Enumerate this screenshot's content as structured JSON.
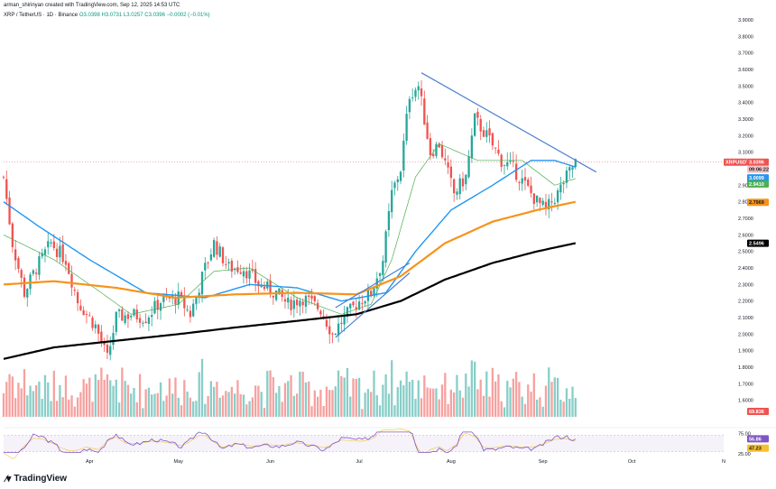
{
  "header": {
    "meta": "arman_shirinyan created with TradingView.com, Sep 12, 2025 14:53 UTC",
    "symbol": "XRP / TetherUS · 1D · Binance",
    "o": "O3.0398",
    "h": "H3.0731",
    "l": "L3.0257",
    "c": "C3.0396",
    "chg": "−0.0002 (−0.01%)"
  },
  "brand": {
    "text": "TradingView"
  },
  "colors": {
    "up": "#26a69a",
    "down": "#ef5350",
    "ma_fast": "#4caf50",
    "ma_mid": "#2196f3",
    "ma_slow": "#f7931a",
    "ma_long": "#000000",
    "trendline": "#4c7fd0",
    "rsi": "#7e57c2"
  },
  "tags": {
    "symbol": "XRPUSDT",
    "price": "3.0396",
    "countdown": "09:06:22",
    "ma_mid": "3.0099",
    "ma_fast": "2.9410",
    "ma_slow": "2.7969",
    "ma_long": "2.5496",
    "volume": "69.836",
    "rsi": "56.86",
    "rsi_ma": "47.23"
  },
  "chart_data": {
    "type": "candlestick",
    "title": "",
    "xlabel": "",
    "ylabel": "",
    "ylim": [
      1.5,
      3.9
    ],
    "y_ticks": [
      "3.9000",
      "3.8000",
      "3.7000",
      "3.6000",
      "3.5000",
      "3.4000",
      "3.3000",
      "3.2000",
      "3.1000",
      "2.9000",
      "2.8000",
      "2.7000",
      "2.6000",
      "2.5000",
      "2.4000",
      "2.3000",
      "2.2000",
      "2.1000",
      "2.0000",
      "1.9000",
      "1.8000",
      "1.7000",
      "1.6000"
    ],
    "x_ticks": [
      {
        "label": "Apr",
        "x": "2025-04-01"
      },
      {
        "label": "May",
        "x": "2025-05-01"
      },
      {
        "label": "Jun",
        "x": "2025-06-01"
      },
      {
        "label": "Jul",
        "x": "2025-07-01"
      },
      {
        "label": "Aug",
        "x": "2025-08-01"
      },
      {
        "label": "Sep",
        "x": "2025-09-01"
      },
      {
        "label": "Oct",
        "x": "2025-10-01"
      },
      {
        "label": "N",
        "x": "2025-11-01"
      }
    ],
    "xlim": [
      "2025-03-03",
      "2025-11-01"
    ],
    "close_anchors": [
      [
        "2025-03-03",
        2.95
      ],
      [
        "2025-03-06",
        2.55
      ],
      [
        "2025-03-10",
        2.25
      ],
      [
        "2025-03-14",
        2.4
      ],
      [
        "2025-03-19",
        2.55
      ],
      [
        "2025-03-24",
        2.45
      ],
      [
        "2025-03-28",
        2.2
      ],
      [
        "2025-04-03",
        2.05
      ],
      [
        "2025-04-07",
        1.85
      ],
      [
        "2025-04-10",
        2.1
      ],
      [
        "2025-04-15",
        2.12
      ],
      [
        "2025-04-20",
        2.1
      ],
      [
        "2025-04-25",
        2.2
      ],
      [
        "2025-05-01",
        2.22
      ],
      [
        "2025-05-05",
        2.12
      ],
      [
        "2025-05-10",
        2.4
      ],
      [
        "2025-05-13",
        2.55
      ],
      [
        "2025-05-18",
        2.4
      ],
      [
        "2025-05-23",
        2.4
      ],
      [
        "2025-05-28",
        2.3
      ],
      [
        "2025-06-03",
        2.25
      ],
      [
        "2025-06-07",
        2.18
      ],
      [
        "2025-06-12",
        2.22
      ],
      [
        "2025-06-18",
        2.15
      ],
      [
        "2025-06-22",
        2.0
      ],
      [
        "2025-06-26",
        2.1
      ],
      [
        "2025-07-01",
        2.2
      ],
      [
        "2025-07-05",
        2.25
      ],
      [
        "2025-07-09",
        2.45
      ],
      [
        "2025-07-12",
        2.85
      ],
      [
        "2025-07-15",
        3.0
      ],
      [
        "2025-07-18",
        3.45
      ],
      [
        "2025-07-21",
        3.5
      ],
      [
        "2025-07-25",
        3.1
      ],
      [
        "2025-07-28",
        3.15
      ],
      [
        "2025-08-02",
        2.85
      ],
      [
        "2025-08-06",
        2.95
      ],
      [
        "2025-08-09",
        3.3
      ],
      [
        "2025-08-13",
        3.2
      ],
      [
        "2025-08-18",
        3.05
      ],
      [
        "2025-08-22",
        3.0
      ],
      [
        "2025-08-26",
        2.9
      ],
      [
        "2025-08-30",
        2.8
      ],
      [
        "2025-09-02",
        2.75
      ],
      [
        "2025-09-06",
        2.85
      ],
      [
        "2025-09-09",
        2.95
      ],
      [
        "2025-09-12",
        3.04
      ]
    ],
    "series": [
      {
        "key": "ma_fast",
        "anchors": [
          [
            "2025-03-03",
            2.6
          ],
          [
            "2025-03-20",
            2.45
          ],
          [
            "2025-04-05",
            2.25
          ],
          [
            "2025-04-15",
            2.12
          ],
          [
            "2025-05-01",
            2.18
          ],
          [
            "2025-05-13",
            2.38
          ],
          [
            "2025-05-25",
            2.4
          ],
          [
            "2025-06-10",
            2.22
          ],
          [
            "2025-06-25",
            2.12
          ],
          [
            "2025-07-05",
            2.18
          ],
          [
            "2025-07-12",
            2.45
          ],
          [
            "2025-07-20",
            2.95
          ],
          [
            "2025-07-28",
            3.15
          ],
          [
            "2025-08-10",
            3.05
          ],
          [
            "2025-08-25",
            3.05
          ],
          [
            "2025-09-05",
            2.9
          ],
          [
            "2025-09-12",
            2.94
          ]
        ]
      },
      {
        "key": "ma_mid",
        "anchors": [
          [
            "2025-03-03",
            2.8
          ],
          [
            "2025-03-15",
            2.65
          ],
          [
            "2025-04-01",
            2.45
          ],
          [
            "2025-04-20",
            2.25
          ],
          [
            "2025-05-10",
            2.22
          ],
          [
            "2025-05-25",
            2.3
          ],
          [
            "2025-06-10",
            2.28
          ],
          [
            "2025-06-25",
            2.2
          ],
          [
            "2025-07-10",
            2.25
          ],
          [
            "2025-07-20",
            2.5
          ],
          [
            "2025-08-01",
            2.75
          ],
          [
            "2025-08-15",
            2.9
          ],
          [
            "2025-08-28",
            3.05
          ],
          [
            "2025-09-05",
            3.05
          ],
          [
            "2025-09-12",
            3.01
          ]
        ]
      },
      {
        "key": "ma_slow",
        "anchors": [
          [
            "2025-03-03",
            2.3
          ],
          [
            "2025-03-20",
            2.32
          ],
          [
            "2025-04-10",
            2.28
          ],
          [
            "2025-04-30",
            2.22
          ],
          [
            "2025-05-20",
            2.24
          ],
          [
            "2025-06-10",
            2.25
          ],
          [
            "2025-06-30",
            2.24
          ],
          [
            "2025-07-15",
            2.35
          ],
          [
            "2025-07-30",
            2.55
          ],
          [
            "2025-08-15",
            2.68
          ],
          [
            "2025-08-30",
            2.75
          ],
          [
            "2025-09-12",
            2.8
          ]
        ]
      },
      {
        "key": "ma_long",
        "anchors": [
          [
            "2025-03-03",
            1.85
          ],
          [
            "2025-03-20",
            1.92
          ],
          [
            "2025-04-10",
            1.96
          ],
          [
            "2025-05-01",
            2.0
          ],
          [
            "2025-05-20",
            2.04
          ],
          [
            "2025-06-10",
            2.08
          ],
          [
            "2025-06-30",
            2.12
          ],
          [
            "2025-07-15",
            2.2
          ],
          [
            "2025-07-30",
            2.33
          ],
          [
            "2025-08-15",
            2.43
          ],
          [
            "2025-08-30",
            2.5
          ],
          [
            "2025-09-12",
            2.55
          ]
        ]
      }
    ],
    "trendlines": [
      {
        "from": [
          "2025-07-22",
          3.58
        ],
        "to": [
          "2025-09-19",
          2.98
        ]
      },
      {
        "from": [
          "2025-06-23",
          1.98
        ],
        "to": [
          "2025-07-18",
          2.37
        ]
      },
      {
        "from": [
          "2025-06-23",
          2.16
        ],
        "to": [
          "2025-07-18",
          2.43
        ]
      }
    ],
    "rsi": {
      "ylim": [
        20,
        80
      ],
      "ticks": [
        "75.00",
        "25.00"
      ],
      "upper": 70,
      "lower": 30,
      "last": 56.86
    }
  }
}
